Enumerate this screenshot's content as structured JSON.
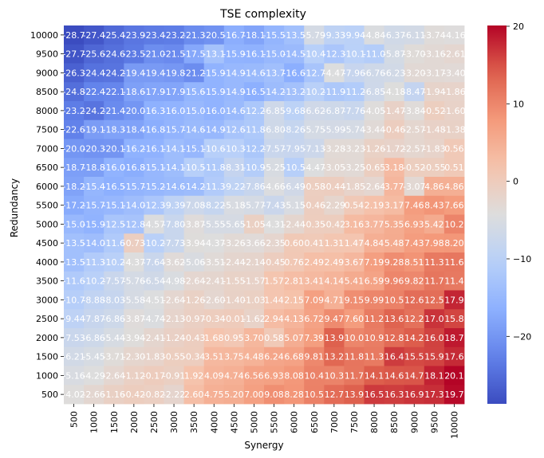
{
  "chart_data": {
    "type": "heatmap",
    "title": "TSE complexity",
    "xlabel": "Synergy",
    "ylabel": "Redundancy",
    "x_categories": [
      "500",
      "1000",
      "1500",
      "2000",
      "2500",
      "3000",
      "3500",
      "4000",
      "4500",
      "5000",
      "5500",
      "6000",
      "6500",
      "7000",
      "7500",
      "8000",
      "8500",
      "9000",
      "9500",
      "10000"
    ],
    "y_categories": [
      "10000",
      "9500",
      "9000",
      "8500",
      "8000",
      "7500",
      "7000",
      "6500",
      "6000",
      "5500",
      "5000",
      "4500",
      "4000",
      "3500",
      "3000",
      "2500",
      "2000",
      "1500",
      "1000",
      "500"
    ],
    "values": [
      [
        -28.7,
        -27.45,
        -25.4,
        -23.9,
        -23.4,
        -23.2,
        -21.3,
        -20.5,
        -16.7,
        -18.1,
        -15.5,
        -13.5,
        -5.79,
        -9.33,
        -9.94,
        -4.84,
        -6.37,
        -6.11,
        -3.74,
        -4.16
      ],
      [
        -27.7,
        -25.6,
        -24.6,
        -23.5,
        -21.0,
        -21.5,
        -17.5,
        -13.1,
        -15.9,
        -16.1,
        -15.0,
        -14.5,
        -10.4,
        -12.3,
        -10.1,
        -11.0,
        -5.87,
        -3.7,
        -3.16,
        -2.61
      ],
      [
        -26.3,
        -24.4,
        -24.2,
        -19.4,
        -19.4,
        -19.8,
        -21.2,
        -15.9,
        -14.9,
        -14.6,
        -13.7,
        -16.6,
        -12.7,
        -4.47,
        -7.96,
        -6.76,
        -6.23,
        -3.2,
        -3.17,
        -3.4
      ],
      [
        -24.8,
        -22.4,
        -22.1,
        -18.6,
        -17.9,
        -17.9,
        -15.6,
        -15.9,
        -14.9,
        -16.5,
        -14.2,
        -13.2,
        -10.2,
        -11.9,
        -11.2,
        -6.85,
        -4.18,
        -8.47,
        -1.94,
        -1.86
      ],
      [
        -23.2,
        -24.2,
        -21.4,
        -20.0,
        -16.3,
        -16.0,
        -15.0,
        -16.0,
        -14.6,
        -12.2,
        -6.85,
        -9.68,
        -6.62,
        -6.87,
        -7.76,
        -4.05,
        -1.47,
        -3.84,
        -0.52,
        -1.6
      ],
      [
        -22.6,
        -19.1,
        -18.3,
        -18.4,
        -16.8,
        -15.7,
        -14.6,
        -14.9,
        -12.6,
        -11.8,
        -6.8,
        -8.26,
        -5.75,
        -5.99,
        -5.74,
        -3.44,
        -0.46,
        -2.57,
        -1.48,
        -1.38
      ],
      [
        -20.0,
        -20.3,
        -20.1,
        -16.2,
        -16.1,
        -14.1,
        -15.1,
        -10.6,
        -10.3,
        -12.2,
        -7.57,
        -7.95,
        -7.13,
        -3.28,
        -3.23,
        -1.26,
        -1.72,
        -2.57,
        -1.83,
        0.56
      ],
      [
        -18.7,
        -18.8,
        -16.0,
        -16.8,
        -15.1,
        -14.1,
        -10.5,
        -11.8,
        -8.31,
        -10.9,
        -5.25,
        -10.5,
        -4.47,
        -3.05,
        -3.25,
        -0.65,
        3.18,
        -0.52,
        -0.55,
        0.51
      ],
      [
        -18.2,
        -15.4,
        -16.5,
        -15.7,
        -15.2,
        -14.6,
        -14.2,
        -11.3,
        -9.22,
        -7.86,
        -4.66,
        -6.49,
        -0.58,
        -0.44,
        -1.85,
        -2.64,
        3.77,
        -3.07,
        4.86,
        4.86
      ],
      [
        -17.2,
        -15.7,
        -15.1,
        -14.0,
        -12.3,
        -9.39,
        -7.08,
        -8.22,
        -5.18,
        -5.77,
        -7.43,
        -5.15,
        -0.46,
        -2.29,
        0.54,
        2.19,
        3.17,
        7.46,
        8.43,
        7.66
      ],
      [
        -15.0,
        -15.9,
        -12.5,
        -12.8,
        -4.57,
        -7.8,
        -3.87,
        -5.55,
        -5.65,
        -1.05,
        -4.31,
        -2.44,
        -0.35,
        -0.42,
        3.16,
        3.77,
        5.35,
        6.93,
        5.42,
        10.2
      ],
      [
        -13.5,
        -14.0,
        -11.6,
        -0.73,
        -10.2,
        -7.73,
        -3.94,
        -4.37,
        -3.26,
        -3.66,
        -2.35,
        0.6,
        0.41,
        1.31,
        1.47,
        4.84,
        5.48,
        7.43,
        7.98,
        8.2
      ],
      [
        -13.5,
        -11.3,
        -10.2,
        -4.37,
        -7.64,
        -3.62,
        -5.06,
        -3.51,
        -2.44,
        -2.14,
        -0.45,
        0.76,
        2.49,
        2.49,
        3.67,
        7.19,
        9.28,
        8.51,
        11.3,
        11.6
      ],
      [
        -11.6,
        -10.2,
        -7.57,
        -5.76,
        -6.54,
        -4.98,
        -2.64,
        -2.41,
        -1.55,
        -1.57,
        1.57,
        2.81,
        3.41,
        4.14,
        5.41,
        6.59,
        9.96,
        9.82,
        11.7,
        11.4
      ],
      [
        -10.7,
        -8.88,
        -8.03,
        -5.58,
        -4.51,
        -2.64,
        -1.26,
        -2.6,
        -1.4,
        -1.03,
        1.44,
        2.15,
        7.09,
        4.71,
        9.15,
        9.99,
        10.5,
        12.6,
        12.5,
        17.9
      ],
      [
        -9.44,
        -7.87,
        -6.86,
        -3.87,
        -4.74,
        -2.13,
        -0.97,
        -0.34,
        -0.01,
        -1.62,
        2.94,
        4.13,
        6.72,
        9.47,
        7.6,
        11.2,
        13.6,
        12.2,
        17.0,
        15.8
      ],
      [
        -7.53,
        -6.86,
        -5.44,
        -3.94,
        -2.41,
        -1.24,
        -0.43,
        1.68,
        0.95,
        3.7,
        0.58,
        5.07,
        7.39,
        13.9,
        10.0,
        10.9,
        12.8,
        14.2,
        16.0,
        18.7
      ],
      [
        -6.21,
        -5.45,
        -3.71,
        -2.3,
        -1.83,
        -0.55,
        -0.34,
        3.51,
        3.75,
        4.48,
        6.24,
        6.68,
        9.81,
        13.2,
        11.8,
        11.3,
        16.4,
        15.5,
        15.9,
        17.6
      ],
      [
        -5.16,
        -4.29,
        -2.64,
        -1.12,
        -0.17,
        -0.91,
        1.92,
        4.09,
        4.74,
        6.56,
        6.93,
        8.08,
        10.4,
        10.3,
        11.7,
        14.1,
        14.6,
        14.7,
        18.1,
        20.1
      ],
      [
        -4.02,
        -2.66,
        -1.16,
        -0.42,
        -0.82,
        -2.22,
        2.6,
        4.75,
        5.2,
        7.0,
        9.08,
        8.28,
        10.5,
        12.7,
        13.9,
        16.5,
        16.3,
        16.9,
        17.3,
        19.7
      ]
    ],
    "cell_labels": [
      [
        "-28.7",
        "-27.4",
        "-25.4",
        "-23.9",
        "-23.4",
        "-23.2",
        "-21.3",
        "-20.5",
        "-16.7",
        "-18.1",
        "-15.5",
        "-13.5",
        "-5.79",
        "-9.33",
        "-9.94",
        "-4.84",
        "-6.37",
        "-6.11",
        "-3.74",
        "-4.16"
      ],
      [
        "-27.7",
        "-25.6",
        "-24.6",
        "-23.5",
        "-21.0",
        "-21.5",
        "-17.5",
        "-13.1",
        "-15.9",
        "-16.1",
        "-15.0",
        "-14.5",
        "-10.4",
        "-12.3",
        "-10.1",
        "-11.0",
        "-5.87",
        "-3.70",
        "-3.16",
        "-2.61"
      ],
      [
        "-26.3",
        "-24.4",
        "-24.2",
        "-19.4",
        "-19.4",
        "-19.8",
        "-21.2",
        "-15.9",
        "-14.9",
        "-14.6",
        "-13.7",
        "-16.6",
        "-12.7",
        "-4.47",
        "-7.96",
        "-6.76",
        "-6.23",
        "-3.20",
        "-3.17",
        "-3.40"
      ],
      [
        "-24.8",
        "-22.4",
        "-22.1",
        "-18.6",
        "-17.9",
        "-17.9",
        "-15.6",
        "-15.9",
        "-14.9",
        "-16.5",
        "-14.2",
        "-13.2",
        "-10.2",
        "-11.9",
        "-11.2",
        "-6.85",
        "-4.18",
        "-8.47",
        "-1.94",
        "-1.86"
      ],
      [
        "-23.2",
        "-24.2",
        "-21.4",
        "-20.0",
        "-16.3",
        "-16.0",
        "-15.0",
        "-16.0",
        "-14.6",
        "-12.2",
        "-6.85",
        "-9.68",
        "-6.62",
        "-6.87",
        "-7.76",
        "-4.05",
        "-1.47",
        "-3.84",
        "-0.52",
        "-1.60"
      ],
      [
        "-22.6",
        "-19.1",
        "-18.3",
        "-18.4",
        "-16.8",
        "-15.7",
        "-14.6",
        "-14.9",
        "-12.6",
        "-11.8",
        "-6.80",
        "-8.26",
        "-5.75",
        "-5.99",
        "-5.74",
        "-3.44",
        "-0.46",
        "-2.57",
        "-1.48",
        "-1.38"
      ],
      [
        "-20.0",
        "-20.3",
        "-20.1",
        "-16.2",
        "-16.1",
        "-14.1",
        "-15.1",
        "-10.6",
        "-10.3",
        "-12.2",
        "-7.57",
        "-7.95",
        "-7.13",
        "-3.28",
        "-3.23",
        "-1.26",
        "-1.72",
        "-2.57",
        "-1.83",
        "0.56"
      ],
      [
        "-18.7",
        "-18.8",
        "-16.0",
        "-16.8",
        "-15.1",
        "-14.1",
        "-10.5",
        "-11.8",
        "-8.31",
        "-10.9",
        "-5.25",
        "-10.5",
        "-4.47",
        "-3.05",
        "-3.25",
        "-0.65",
        "3.18",
        "-0.52",
        "-0.55",
        "0.51"
      ],
      [
        "-18.2",
        "-15.4",
        "-16.5",
        "-15.7",
        "-15.2",
        "-14.6",
        "-14.2",
        "-11.3",
        "-9.22",
        "-7.86",
        "-4.66",
        "-6.49",
        "-0.58",
        "-0.44",
        "-1.85",
        "-2.64",
        "3.77",
        "-3.07",
        "4.86",
        "4.86"
      ],
      [
        "-17.2",
        "-15.7",
        "-15.1",
        "-14.0",
        "-12.3",
        "-9.39",
        "-7.08",
        "-8.22",
        "-5.18",
        "-5.77",
        "-7.43",
        "-5.15",
        "-0.46",
        "-2.29",
        "0.54",
        "2.19",
        "3.17",
        "7.46",
        "8.43",
        "7.66"
      ],
      [
        "-15.0",
        "-15.9",
        "-12.5",
        "-12.8",
        "-4.57",
        "-7.80",
        "-3.87",
        "-5.55",
        "-5.65",
        "-1.05",
        "-4.31",
        "-2.44",
        "-0.35",
        "-0.42",
        "3.16",
        "3.77",
        "5.35",
        "6.93",
        "5.42",
        "10.2"
      ],
      [
        "-13.5",
        "-14.0",
        "-11.6",
        "-0.73",
        "-10.2",
        "-7.73",
        "-3.94",
        "-4.37",
        "-3.26",
        "-3.66",
        "-2.35",
        "0.60",
        "0.41",
        "1.31",
        "1.47",
        "4.84",
        "5.48",
        "7.43",
        "7.98",
        "8.20"
      ],
      [
        "-13.5",
        "-11.3",
        "-10.2",
        "-4.37",
        "-7.64",
        "-3.62",
        "-5.06",
        "-3.51",
        "-2.44",
        "-2.14",
        "-0.45",
        "0.76",
        "2.49",
        "2.49",
        "3.67",
        "7.19",
        "9.28",
        "8.51",
        "11.3",
        "11.6"
      ],
      [
        "-11.6",
        "-10.2",
        "-7.57",
        "-5.76",
        "-6.54",
        "-4.98",
        "-2.64",
        "-2.41",
        "-1.55",
        "-1.57",
        "1.57",
        "2.81",
        "3.41",
        "4.14",
        "5.41",
        "6.59",
        "9.96",
        "9.82",
        "11.7",
        "11.4"
      ],
      [
        "-10.7",
        "-8.88",
        "-8.03",
        "-5.58",
        "-4.51",
        "-2.64",
        "-1.26",
        "-2.60",
        "-1.40",
        "-1.03",
        "1.44",
        "2.15",
        "7.09",
        "4.71",
        "9.15",
        "9.99",
        "10.5",
        "12.6",
        "12.5",
        "17.9"
      ],
      [
        "-9.44",
        "-7.87",
        "-6.86",
        "-3.87",
        "-4.74",
        "-2.13",
        "-0.97",
        "-0.34",
        "-0.01",
        "-1.62",
        "2.94",
        "4.13",
        "6.72",
        "9.47",
        "7.60",
        "11.2",
        "13.6",
        "12.2",
        "17.0",
        "15.8"
      ],
      [
        "-7.53",
        "-6.86",
        "-5.44",
        "-3.94",
        "-2.41",
        "-1.24",
        "-0.43",
        "1.68",
        "0.95",
        "3.70",
        "0.58",
        "5.07",
        "7.39",
        "13.9",
        "10.0",
        "10.9",
        "12.8",
        "14.2",
        "16.0",
        "18.7"
      ],
      [
        "-6.21",
        "-5.45",
        "-3.71",
        "-2.30",
        "-1.83",
        "-0.55",
        "-0.34",
        "3.51",
        "3.75",
        "4.48",
        "6.24",
        "6.68",
        "9.81",
        "13.2",
        "11.8",
        "11.3",
        "16.4",
        "15.5",
        "15.9",
        "17.6"
      ],
      [
        "-5.16",
        "-4.29",
        "-2.64",
        "-1.12",
        "-0.17",
        "-0.91",
        "1.92",
        "4.09",
        "4.74",
        "6.56",
        "6.93",
        "8.08",
        "10.4",
        "10.3",
        "11.7",
        "14.1",
        "14.6",
        "14.7",
        "18.1",
        "20.1"
      ],
      [
        "-4.02",
        "-2.66",
        "-1.16",
        "-0.42",
        "-0.82",
        "-2.22",
        "2.60",
        "4.75",
        "5.20",
        "7.00",
        "9.08",
        "8.28",
        "10.5",
        "12.7",
        "13.9",
        "16.5",
        "16.3",
        "16.9",
        "17.3",
        "19.7"
      ]
    ],
    "colormap": "coolwarm",
    "vmin": -28.7,
    "vmax": 20.1,
    "colorbar_ticks": [
      20,
      10,
      0,
      -10,
      -20
    ],
    "colorbar_tick_labels": [
      "20",
      "10",
      "0",
      "−10",
      "−20"
    ]
  }
}
